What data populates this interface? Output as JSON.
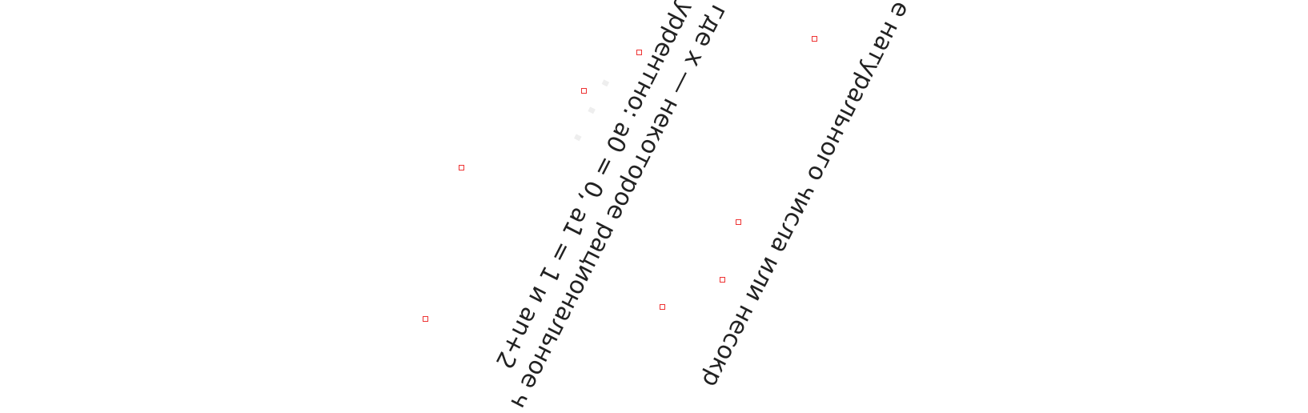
{
  "lines": [
    "уррентно: a0 = 0, a1 = 1 и an+2",
    "где x — некоторое рациональное ч",
    "е натурального числа или несокр"
  ]
}
